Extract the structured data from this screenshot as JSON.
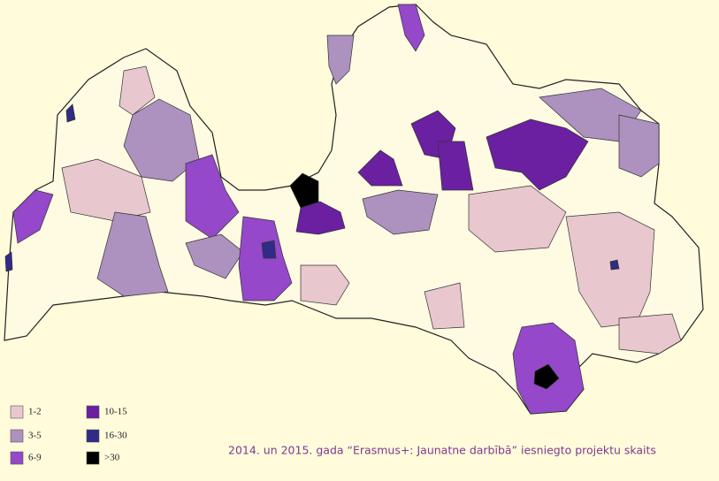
{
  "legend": {
    "items": [
      {
        "label": "1-2",
        "color": "#e8c7cf"
      },
      {
        "label": "3-5",
        "color": "#ad91bf"
      },
      {
        "label": "6-9",
        "color": "#9548c9"
      },
      {
        "label": "10-15",
        "color": "#6b1fa1"
      },
      {
        "label": "16-30",
        "color": "#2f2b86"
      },
      {
        "label": ">30",
        "color": "#000000"
      }
    ]
  },
  "caption": "2014. un 2015. gada “Erasmus+: Jaunatne darbībā” iesniegto projektu skaits"
}
